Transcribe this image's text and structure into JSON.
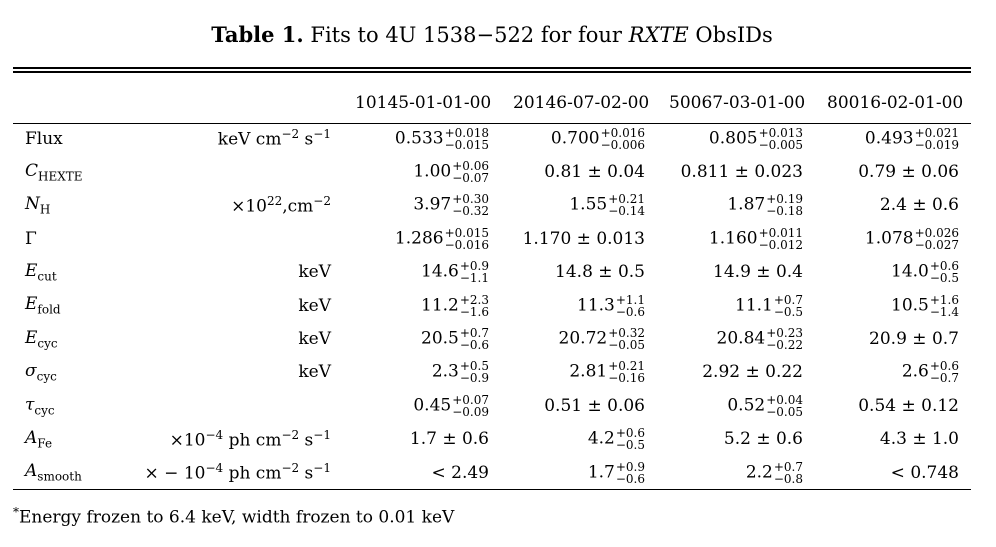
{
  "caption": {
    "label": "Table 1.",
    "text_before": " Fits to 4U 1538−522 for four ",
    "italic": "RXTE",
    "text_after": " ObsIDs"
  },
  "columns": [
    "",
    "",
    "10145-01-01-00",
    "20146-07-02-00",
    "50067-03-01-00",
    "80016-02-01-00"
  ],
  "rows": [
    {
      "sym": "Flux",
      "sub": "",
      "italic": false,
      "unit": {
        "pre": "keV cm",
        "sup1": "−2",
        "mid": " s",
        "sup2": "−1"
      },
      "values": [
        {
          "v": "0.533",
          "up": "+0.018",
          "lo": "−0.015"
        },
        {
          "v": "0.700",
          "up": "+0.016",
          "lo": "−0.006"
        },
        {
          "v": "0.805",
          "up": "+0.013",
          "lo": "−0.005"
        },
        {
          "v": "0.493",
          "up": "+0.021",
          "lo": "−0.019"
        }
      ]
    },
    {
      "sym": "C",
      "sub": "HEXTE",
      "italic": true,
      "unit": null,
      "values": [
        {
          "v": "1.00",
          "up": "+0.06",
          "lo": "−0.07"
        },
        {
          "v": "0.81 ± 0.04"
        },
        {
          "v": "0.811 ± 0.023"
        },
        {
          "v": "0.79 ± 0.06"
        }
      ]
    },
    {
      "sym": "N",
      "sub": "H",
      "italic": true,
      "unit": {
        "pre": "×10",
        "sup1": "22",
        "mid": ",cm",
        "sup2": "−2"
      },
      "values": [
        {
          "v": "3.97",
          "up": "+0.30",
          "lo": "−0.32"
        },
        {
          "v": "1.55",
          "up": "+0.21",
          "lo": "−0.14"
        },
        {
          "v": "1.87",
          "up": "+0.19",
          "lo": "−0.18"
        },
        {
          "v": "2.4 ± 0.6"
        }
      ]
    },
    {
      "sym": "Γ",
      "sub": "",
      "italic": false,
      "unit": null,
      "values": [
        {
          "v": "1.286",
          "up": "+0.015",
          "lo": "−0.016"
        },
        {
          "v": "1.170 ± 0.013"
        },
        {
          "v": "1.160",
          "up": "+0.011",
          "lo": "−0.012"
        },
        {
          "v": "1.078",
          "up": "+0.026",
          "lo": "−0.027"
        }
      ]
    },
    {
      "sym": "E",
      "sub": "cut",
      "italic": true,
      "unit": {
        "pre": "keV"
      },
      "values": [
        {
          "v": "14.6",
          "up": "+0.9",
          "lo": "−1.1"
        },
        {
          "v": "14.8 ± 0.5"
        },
        {
          "v": "14.9 ± 0.4"
        },
        {
          "v": "14.0",
          "up": "+0.6",
          "lo": "−0.5"
        }
      ]
    },
    {
      "sym": "E",
      "sub": "fold",
      "italic": true,
      "unit": {
        "pre": "keV"
      },
      "values": [
        {
          "v": "11.2",
          "up": "+2.3",
          "lo": "−1.6"
        },
        {
          "v": "11.3",
          "up": "+1.1",
          "lo": "−0.6"
        },
        {
          "v": "11.1",
          "up": "+0.7",
          "lo": "−0.5"
        },
        {
          "v": "10.5",
          "up": "+1.6",
          "lo": "−1.4"
        }
      ]
    },
    {
      "sym": "E",
      "sub": "cyc",
      "italic": true,
      "unit": {
        "pre": "keV"
      },
      "values": [
        {
          "v": "20.5",
          "up": "+0.7",
          "lo": "−0.6"
        },
        {
          "v": "20.72",
          "up": "+0.32",
          "lo": "−0.05"
        },
        {
          "v": "20.84",
          "up": "+0.23",
          "lo": "−0.22"
        },
        {
          "v": "20.9 ± 0.7"
        }
      ]
    },
    {
      "sym": "σ",
      "sub": "cyc",
      "italic": true,
      "unit": {
        "pre": "keV"
      },
      "values": [
        {
          "v": "2.3",
          "up": "+0.5",
          "lo": "−0.9"
        },
        {
          "v": "2.81",
          "up": "+0.21",
          "lo": "−0.16"
        },
        {
          "v": "2.92 ± 0.22"
        },
        {
          "v": "2.6",
          "up": "+0.6",
          "lo": "−0.7"
        }
      ]
    },
    {
      "sym": "τ",
      "sub": "cyc",
      "italic": true,
      "unit": null,
      "values": [
        {
          "v": "0.45",
          "up": "+0.07",
          "lo": "−0.09"
        },
        {
          "v": "0.51 ± 0.06"
        },
        {
          "v": "0.52",
          "up": "+0.04",
          "lo": "−0.05"
        },
        {
          "v": "0.54 ± 0.12"
        }
      ]
    },
    {
      "sym": "A",
      "sub": "Fe",
      "italic": true,
      "unit": {
        "pre": "×10",
        "sup1": "−4",
        "mid": " ph cm",
        "sup2": "−2",
        "post": " s",
        "sup3": "−1"
      },
      "values": [
        {
          "v": "1.7 ± 0.6"
        },
        {
          "v": "4.2",
          "up": "+0.6",
          "lo": "−0.5"
        },
        {
          "v": "5.2 ± 0.6"
        },
        {
          "v": "4.3 ± 1.0"
        }
      ]
    },
    {
      "sym": "A",
      "sub": "smooth",
      "italic": true,
      "unit": {
        "pre": "× − 10",
        "sup1": "−4",
        "mid": " ph cm",
        "sup2": "−2",
        "post": " s",
        "sup3": "−1"
      },
      "values": [
        {
          "v": "< 2.49"
        },
        {
          "v": "1.7",
          "up": "+0.9",
          "lo": "−0.6"
        },
        {
          "v": "2.2",
          "up": "+0.7",
          "lo": "−0.8"
        },
        {
          "v": "< 0.748"
        }
      ]
    }
  ],
  "footnote": {
    "mark": "*",
    "text": "Energy frozen to 6.4 keV, width frozen to 0.01 keV"
  }
}
